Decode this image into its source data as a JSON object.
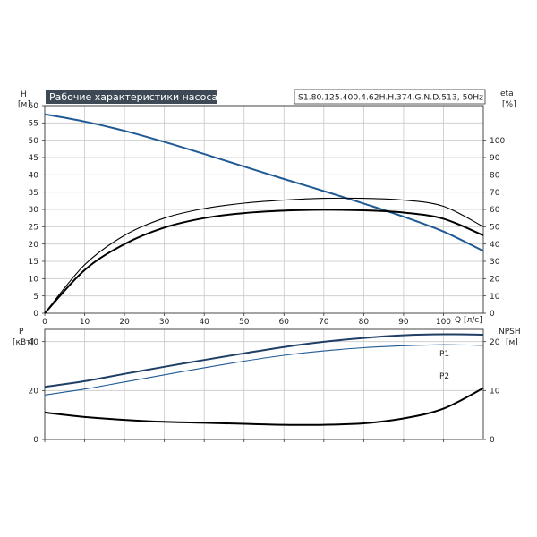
{
  "chart_data": [
    {
      "type": "line",
      "title": "Рабочие характеристики насоса",
      "model_label": "S1.80.125.400.4.62H.H.374.G.N.D.513, 50Hz",
      "left_axis": {
        "label": "H",
        "unit": "[м]",
        "range": [
          0,
          60
        ],
        "ticks": [
          0,
          5,
          10,
          15,
          20,
          25,
          30,
          35,
          40,
          45,
          50,
          55,
          60
        ]
      },
      "right_axis": {
        "label": "eta",
        "unit": "[%]",
        "range": [
          0,
          120
        ],
        "ticks": [
          0,
          10,
          20,
          30,
          40,
          50,
          60,
          70,
          80,
          90,
          100
        ]
      },
      "x_axis": {
        "label": "Q [л/с]",
        "range": [
          0,
          110
        ],
        "ticks": [
          0,
          10,
          20,
          30,
          40,
          50,
          60,
          70,
          80,
          90,
          100
        ]
      },
      "grid": true,
      "series": [
        {
          "role": "head",
          "axis": "left",
          "color": "#1f5a94",
          "x": [
            0,
            10,
            20,
            30,
            40,
            50,
            60,
            70,
            80,
            90,
            100,
            110
          ],
          "y": [
            57.5,
            55.4,
            52.7,
            49.5,
            46.0,
            42.4,
            38.8,
            35.3,
            31.7,
            27.9,
            23.6,
            18.0
          ]
        },
        {
          "role": "efficiency",
          "axis": "right",
          "color": "#000000",
          "x": [
            0,
            10,
            20,
            30,
            40,
            50,
            60,
            70,
            80,
            90,
            100,
            110
          ],
          "y": [
            0,
            25,
            40,
            49.5,
            55,
            57.9,
            59.3,
            59.8,
            59.5,
            58.2,
            54.6,
            45.0
          ]
        },
        {
          "role": "efficiency-thin",
          "axis": "right",
          "color": "#000000",
          "x": [
            0,
            10,
            20,
            30,
            40,
            50,
            60,
            70,
            80,
            90,
            100,
            110
          ],
          "y": [
            0,
            28,
            45,
            55,
            60.5,
            63.6,
            65.4,
            66.4,
            66.4,
            65.4,
            61.8,
            50.0
          ]
        }
      ]
    },
    {
      "type": "line",
      "left_axis": {
        "label": "P",
        "unit": "[кВт]",
        "range": [
          0,
          45
        ],
        "ticks": [
          0,
          20,
          40
        ]
      },
      "right_axis": {
        "label": "NPSH",
        "unit": "[м]",
        "range": [
          0,
          22.5
        ],
        "ticks": [
          0,
          10,
          20
        ]
      },
      "x_axis": {
        "range": [
          0,
          110
        ],
        "ticks": [
          0,
          10,
          20,
          30,
          40,
          50,
          60,
          70,
          80,
          90,
          100
        ]
      },
      "grid": true,
      "series": [
        {
          "name": "P1",
          "axis": "left",
          "color": "#1f3f66",
          "x": [
            0,
            10,
            20,
            30,
            40,
            50,
            60,
            70,
            80,
            90,
            100,
            110
          ],
          "y": [
            21.5,
            23.8,
            26.8,
            29.7,
            32.5,
            35.2,
            37.8,
            39.9,
            41.5,
            42.6,
            43.0,
            42.8
          ]
        },
        {
          "name": "P2",
          "axis": "left",
          "color": "#1f5a94",
          "x": [
            0,
            10,
            20,
            30,
            40,
            50,
            60,
            70,
            80,
            90,
            100,
            110
          ],
          "y": [
            18.2,
            20.6,
            23.5,
            26.4,
            29.3,
            32.0,
            34.4,
            36.2,
            37.5,
            38.3,
            38.7,
            38.5
          ]
        },
        {
          "role": "npsh",
          "axis": "right",
          "color": "#000000",
          "x": [
            0,
            10,
            20,
            30,
            40,
            50,
            60,
            70,
            80,
            90,
            100,
            110
          ],
          "y": [
            5.5,
            4.6,
            4.0,
            3.6,
            3.4,
            3.2,
            3.0,
            3.0,
            3.3,
            4.3,
            6.3,
            10.5
          ]
        }
      ]
    }
  ]
}
